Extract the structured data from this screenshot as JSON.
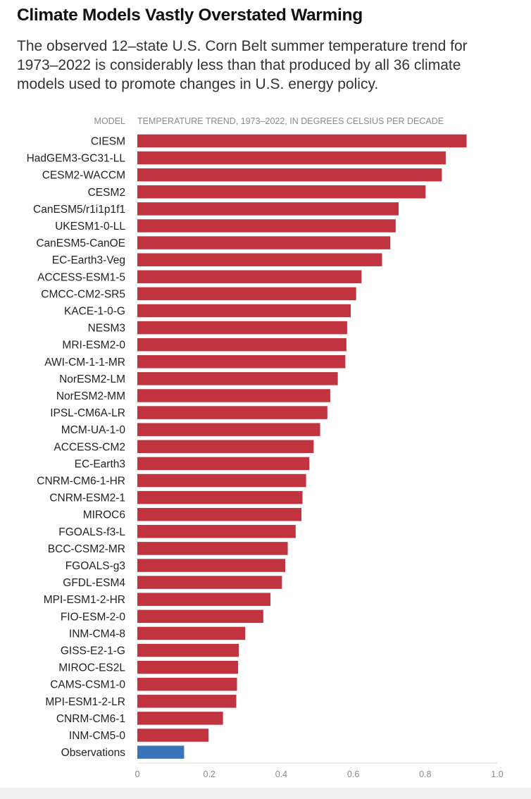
{
  "title": "Climate Models Vastly Overstated Warming",
  "subtitle": "The observed 12–state U.S. Corn Belt summer temperature trend for 1973–2022 is considerably less than that produced by all 36 climate models used to promote changes in U.S. energy policy.",
  "colors": {
    "model_bar": "#c1343f",
    "observation_bar": "#3a73b9",
    "axis_text": "#8a8a8a",
    "label_text": "#222222",
    "axis_line": "#d8d8d8"
  },
  "chart_data": {
    "type": "bar",
    "orientation": "horizontal",
    "category_header": "MODEL",
    "value_header": "TEMPERATURE TREND, 1973–2022, IN DEGREES CELSIUS PER DECADE",
    "xlim": [
      0,
      1.0
    ],
    "xticks": [
      "0",
      "0.2",
      "0.4",
      "0.6",
      "0.8",
      "1.0"
    ],
    "grid": false,
    "categories": [
      "CIESM",
      "HadGEM3-GC31-LL",
      "CESM2-WACCM",
      "CESM2",
      "CanESM5/r1i1p1f1",
      "UKESM1-0-LL",
      "CanESM5-CanOE",
      "EC-Earth3-Veg",
      "ACCESS-ESM1-5",
      "CMCC-CM2-SR5",
      "KACE-1-0-G",
      "NESM3",
      "MRI-ESM2-0",
      "AWI-CM-1-1-MR",
      "NorESM2-LM",
      "NorESM2-MM",
      "IPSL-CM6A-LR",
      "MCM-UA-1-0",
      "ACCESS-CM2",
      "EC-Earth3",
      "CNRM-CM6-1-HR",
      "CNRM-ESM2-1",
      "MIROC6",
      "FGOALS-f3-L",
      "BCC-CSM2-MR",
      "FGOALS-g3",
      "GFDL-ESM4",
      "MPI-ESM1-2-HR",
      "FIO-ESM-2-0",
      "INM-CM4-8",
      "GISS-E2-1-G",
      "MIROC-ES2L",
      "CAMS-CSM1-0",
      "MPI-ESM1-2-LR",
      "CNRM-CM6-1",
      "INM-CM5-0",
      "Observations"
    ],
    "values": [
      0.915,
      0.857,
      0.846,
      0.801,
      0.726,
      0.718,
      0.703,
      0.68,
      0.623,
      0.608,
      0.593,
      0.583,
      0.581,
      0.578,
      0.557,
      0.536,
      0.528,
      0.508,
      0.49,
      0.478,
      0.469,
      0.459,
      0.456,
      0.44,
      0.418,
      0.411,
      0.402,
      0.37,
      0.35,
      0.3,
      0.282,
      0.28,
      0.277,
      0.275,
      0.238,
      0.198,
      0.13
    ],
    "highlight": "Observations"
  }
}
